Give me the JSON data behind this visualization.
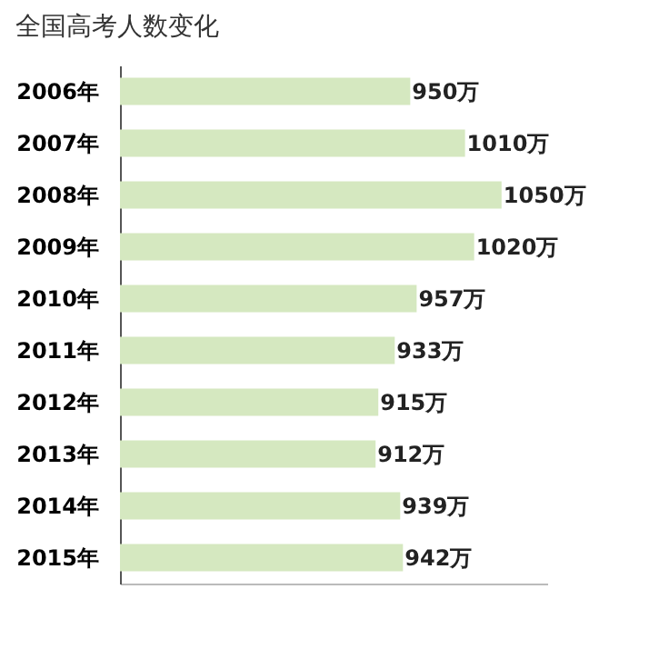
{
  "chart_data": {
    "type": "bar",
    "orientation": "horizontal",
    "title": "全国高考人数变化",
    "categories": [
      "2006年",
      "2007年",
      "2008年",
      "2009年",
      "2010年",
      "2011年",
      "2012年",
      "2013年",
      "2014年",
      "2015年"
    ],
    "values": [
      950,
      1010,
      1050,
      1020,
      957,
      933,
      915,
      912,
      939,
      942
    ],
    "value_labels": [
      "950万",
      "1010万",
      "1050万",
      "1020万",
      "957万",
      "933万",
      "915万",
      "912万",
      "939万",
      "942万"
    ],
    "color": "#d5e8c0",
    "xlim": [
      632,
      1100
    ],
    "tick_labels": "y",
    "grid": false
  }
}
